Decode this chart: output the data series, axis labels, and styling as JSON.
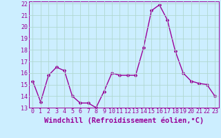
{
  "x": [
    0,
    1,
    2,
    3,
    4,
    5,
    6,
    7,
    8,
    9,
    10,
    11,
    12,
    13,
    14,
    15,
    16,
    17,
    18,
    19,
    20,
    21,
    22,
    23
  ],
  "y": [
    15.3,
    13.5,
    15.8,
    16.5,
    16.2,
    14.0,
    13.4,
    13.4,
    13.0,
    14.4,
    16.0,
    15.8,
    15.8,
    15.8,
    18.2,
    21.4,
    21.9,
    20.6,
    17.9,
    16.0,
    15.3,
    15.1,
    15.0,
    14.0
  ],
  "line_color": "#990099",
  "marker": "D",
  "marker_size": 2,
  "bg_color": "#cceeff",
  "grid_color": "#aaddcc",
  "xlabel": "Windchill (Refroidissement éolien,°C)",
  "xlabel_fontsize": 7.5,
  "ylim": [
    13,
    22
  ],
  "xlim": [
    -0.5,
    23.5
  ],
  "yticks": [
    13,
    14,
    15,
    16,
    17,
    18,
    19,
    20,
    21,
    22
  ],
  "xticks": [
    0,
    1,
    2,
    3,
    4,
    5,
    6,
    7,
    8,
    9,
    10,
    11,
    12,
    13,
    14,
    15,
    16,
    17,
    18,
    19,
    20,
    21,
    22,
    23
  ],
  "tick_fontsize": 6,
  "line_width": 1.0
}
